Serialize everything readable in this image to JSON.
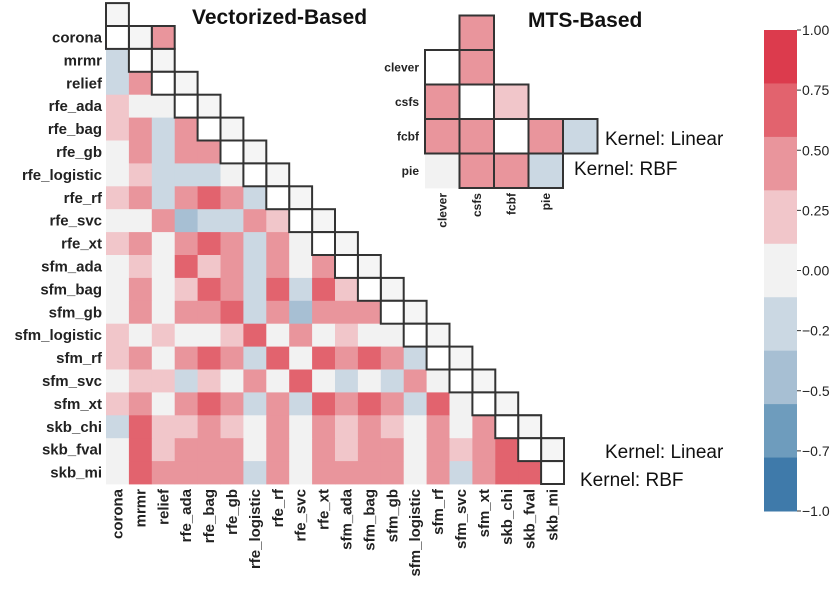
{
  "chart_data": [
    {
      "type": "heatmap",
      "title": "Vectorized-Based",
      "labels": [
        "corona",
        "mrmr",
        "relief",
        "rfe_ada",
        "rfe_bag",
        "rfe_gb",
        "rfe_logistic",
        "rfe_rf",
        "rfe_svc",
        "rfe_xt",
        "sfm_ada",
        "sfm_bag",
        "sfm_gb",
        "sfm_logistic",
        "sfm_rf",
        "sfm_svc",
        "sfm_xt",
        "skb_chi",
        "skb_fval",
        "skb_mi"
      ],
      "lower_triangle_note": "Kernel: RBF",
      "upper_triangle_note": "Kernel: Linear",
      "lower": [
        [],
        [
          -0.2
        ],
        [
          -0.2,
          0.6
        ],
        [
          0.2,
          0.0,
          0.0
        ],
        [
          0.2,
          0.4,
          -0.2,
          0.4
        ],
        [
          0.0,
          0.4,
          -0.2,
          0.4,
          0.6
        ],
        [
          0.0,
          0.2,
          -0.2,
          -0.2,
          -0.2,
          0.0
        ],
        [
          0.2,
          0.4,
          -0.2,
          0.4,
          0.8,
          0.6,
          -0.2
        ],
        [
          0.0,
          0.0,
          0.4,
          -0.5,
          -0.2,
          -0.2,
          0.4,
          0.2
        ],
        [
          0.2,
          0.4,
          0.0,
          0.4,
          0.8,
          0.6,
          -0.2,
          0.6,
          0.0
        ],
        [
          0.0,
          0.2,
          0.0,
          0.8,
          0.2,
          0.4,
          -0.2,
          0.4,
          0.0,
          0.4
        ],
        [
          0.0,
          0.6,
          0.0,
          0.2,
          0.8,
          0.6,
          -0.2,
          0.8,
          -0.2,
          0.8,
          0.2
        ],
        [
          0.0,
          0.4,
          0.0,
          0.4,
          0.6,
          0.8,
          -0.2,
          0.6,
          -0.5,
          0.6,
          0.4,
          0.6
        ],
        [
          0.2,
          0.0,
          0.2,
          0.0,
          0.0,
          0.2,
          0.8,
          0.0,
          0.4,
          0.0,
          0.2,
          0.0,
          0.0
        ],
        [
          0.2,
          0.4,
          0.0,
          0.4,
          0.8,
          0.6,
          -0.2,
          0.8,
          0.0,
          0.8,
          0.4,
          0.8,
          0.6,
          -0.2
        ],
        [
          0.0,
          0.2,
          0.2,
          -0.2,
          0.2,
          0.0,
          0.4,
          0.0,
          0.8,
          0.0,
          -0.2,
          0.0,
          -0.2,
          0.6,
          0.0
        ],
        [
          0.2,
          0.4,
          0.0,
          0.4,
          0.8,
          0.6,
          -0.2,
          0.6,
          -0.2,
          0.8,
          0.4,
          0.8,
          0.6,
          -0.2,
          0.8,
          0.0
        ],
        [
          -0.2,
          0.8,
          0.2,
          0.2,
          0.4,
          0.2,
          0.0,
          0.4,
          0.0,
          0.4,
          0.2,
          0.4,
          0.2,
          0.0,
          0.4,
          0.0,
          0.4
        ],
        [
          0.0,
          0.8,
          0.2,
          0.4,
          0.4,
          0.4,
          0.0,
          0.4,
          0.0,
          0.4,
          0.2,
          0.6,
          0.4,
          0.0,
          0.4,
          0.2,
          0.4,
          0.8
        ],
        [
          0.0,
          0.8,
          0.4,
          0.4,
          0.4,
          0.4,
          -0.2,
          0.4,
          0.0,
          0.4,
          0.4,
          0.6,
          0.4,
          0.0,
          0.4,
          -0.2,
          0.6,
          0.8,
          0.8
        ]
      ],
      "upper_visible": [
        {
          "row": "corona",
          "col": "relief",
          "value": 0.6
        },
        {
          "row": "skb_chi",
          "col": "skb_fval",
          "value": 0.8
        },
        {
          "row": "skb_fval",
          "col": "skb_mi",
          "value": 0.6
        }
      ]
    },
    {
      "type": "heatmap",
      "title": "MTS-Based",
      "labels": [
        "clever",
        "csfs",
        "fcbf",
        "pie"
      ],
      "lower_triangle_note": "Kernel: RBF",
      "upper_triangle_note": "Kernel: Linear",
      "lower": [
        [],
        [
          0.2
        ],
        [
          0.4,
          0.0
        ],
        [
          0.0,
          -0.2,
          -0.2
        ]
      ],
      "upper": [
        [
          null,
          0.6,
          null,
          null
        ],
        [
          0.4,
          null,
          0.2,
          null
        ],
        [
          0.4,
          0.4,
          null,
          0.6
        ],
        [
          null,
          0.4,
          0.6,
          null
        ]
      ],
      "diagonal_kernel_linear_mark": {
        "row": "fcbf",
        "value": -0.2
      },
      "diagonal_kernel_rbf_mark": {
        "row": "pie",
        "value": -0.2
      }
    }
  ],
  "colorbar": {
    "ticks": [
      "1.00",
      "0.75",
      "0.50",
      "0.25",
      "0.00",
      "−0.25",
      "−0.50",
      "−0.75",
      "−1.00"
    ],
    "colors": [
      "#dc3b4d",
      "#e2636e",
      "#e9959c",
      "#f1c6ca",
      "#f2f2f2",
      "#cbd8e3",
      "#a7bfd3",
      "#6e9cbd",
      "#3f7aaa"
    ]
  },
  "annotations": {
    "kernel_linear": "Kernel: Linear",
    "kernel_rbf": "Kernel: RBF"
  }
}
